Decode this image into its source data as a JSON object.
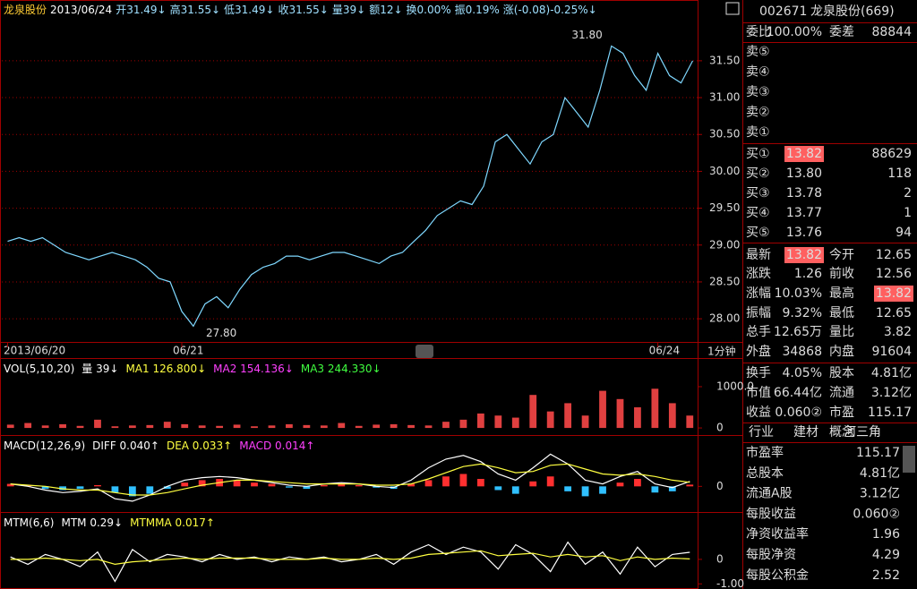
{
  "header": [
    "龙泉股份",
    "2013/06/24",
    "开31.49↓",
    "高31.55↓",
    "低31.49↓",
    "收31.55↓",
    "量39↓",
    "额12↓",
    "换0.00%",
    "振0.19%",
    "涨(-0.08)-0.25%↓"
  ],
  "chart_data": [
    {
      "type": "line",
      "color": "#7fd8ff",
      "grid": true,
      "categories": [
        "2013/06/20",
        null,
        null,
        null,
        null,
        null,
        null,
        null,
        null,
        null,
        null,
        null,
        null,
        null,
        null,
        "06/21",
        null,
        null,
        null,
        null,
        null,
        null,
        null,
        null,
        null,
        null,
        null,
        null,
        null,
        null,
        null,
        null,
        null,
        null,
        null,
        null,
        null,
        null,
        null,
        null,
        null,
        null,
        null,
        null,
        null,
        null,
        null,
        null,
        null,
        null,
        null,
        null,
        null,
        null,
        null,
        null,
        "06/24",
        null,
        null,
        null
      ],
      "values": [
        29.05,
        29.1,
        29.05,
        29.1,
        29.0,
        28.9,
        28.85,
        28.8,
        28.85,
        28.9,
        28.85,
        28.8,
        28.7,
        28.55,
        28.5,
        28.1,
        27.9,
        28.2,
        28.3,
        28.15,
        28.4,
        28.6,
        28.7,
        28.75,
        28.85,
        28.85,
        28.8,
        28.85,
        28.9,
        28.9,
        28.85,
        28.8,
        28.75,
        28.85,
        28.9,
        29.05,
        29.2,
        29.4,
        29.5,
        29.6,
        29.55,
        29.8,
        30.4,
        30.5,
        30.3,
        30.1,
        30.4,
        30.5,
        31.0,
        30.8,
        30.6,
        31.1,
        31.7,
        31.6,
        31.3,
        31.1,
        31.6,
        31.3,
        31.2,
        31.5
      ],
      "ylim": [
        27.71,
        32.3
      ],
      "yticks": [
        {
          "value": 28,
          "label": "28.00"
        },
        {
          "value": 28.5,
          "label": "28.50"
        },
        {
          "value": 29,
          "label": "29.00"
        },
        {
          "value": 29.5,
          "label": "29.50"
        },
        {
          "value": 30,
          "label": "30.00"
        },
        {
          "value": 30.5,
          "label": "30.50"
        },
        {
          "value": 31,
          "label": "31.00"
        },
        {
          "value": 31.5,
          "label": "31.50"
        }
      ],
      "annotations": {
        "high": "31.80",
        "low": "27.80"
      },
      "period": "1分钟"
    },
    {
      "type": "bar",
      "title": "VOL(5,10,20)",
      "grid": true,
      "legend": [
        {
          "text": "量 39↓",
          "color": "#ffffff"
        },
        {
          "text": "MA1 126.800↓",
          "color": "#ffff40"
        },
        {
          "text": "MA2 154.136↓",
          "color": "#ff40ff"
        },
        {
          "text": "MA3 244.330↓",
          "color": "#40ff40"
        }
      ],
      "ylim": [
        -150,
        1650
      ],
      "yticks": [
        0,
        {
          "value": 1000,
          "label": "1000.0"
        }
      ],
      "series": [
        {
          "type": "bar",
          "color": "#e04040",
          "values": [
            80,
            120,
            60,
            90,
            50,
            200,
            40,
            60,
            70,
            150,
            90,
            60,
            50,
            80,
            40,
            60,
            90,
            70,
            60,
            120,
            50,
            80,
            90,
            70,
            60,
            150,
            200,
            350,
            300,
            250,
            800,
            400,
            600,
            300,
            900,
            700,
            500,
            950,
            600,
            300
          ]
        }
      ]
    },
    {
      "type": "bar",
      "title": "MACD(12,26,9)",
      "grid": false,
      "legend": [
        {
          "text": "DIFF 0.040↑",
          "color": "#ffffff"
        },
        {
          "text": "DEA 0.033↑",
          "color": "#ffff40"
        },
        {
          "text": "MACD 0.014↑",
          "color": "#ff40ff"
        }
      ],
      "ylim": [
        -0.2,
        0.4
      ],
      "yticks": [
        0
      ],
      "series": [
        {
          "type": "bar",
          "color": "#ff3030",
          "negative_color": "#30c0ff",
          "values": [
            0.02,
            0.01,
            -0.02,
            -0.03,
            -0.02,
            0.01,
            -0.05,
            -0.08,
            -0.06,
            -0.02,
            0.03,
            0.05,
            0.06,
            0.05,
            0.03,
            0.02,
            -0.01,
            -0.02,
            0.01,
            0.02,
            0.01,
            -0.01,
            -0.02,
            0.02,
            0.05,
            0.08,
            0.1,
            0.06,
            -0.03,
            -0.06,
            0.04,
            0.08,
            -0.04,
            -0.08,
            -0.06,
            0.03,
            0.06,
            -0.05,
            -0.04,
            0.014
          ]
        },
        {
          "type": "line",
          "color": "#ffffff",
          "values": [
            0.02,
            0.0,
            -0.03,
            -0.05,
            -0.04,
            -0.02,
            -0.1,
            -0.12,
            -0.07,
            0.0,
            0.05,
            0.07,
            0.08,
            0.07,
            0.05,
            0.03,
            0.01,
            0.0,
            0.02,
            0.03,
            0.02,
            0.0,
            -0.01,
            0.05,
            0.15,
            0.22,
            0.25,
            0.2,
            0.1,
            0.05,
            0.15,
            0.26,
            0.18,
            0.05,
            0.02,
            0.08,
            0.12,
            0.02,
            -0.01,
            0.04
          ]
        },
        {
          "type": "line",
          "color": "#ffff40",
          "values": [
            0.02,
            0.01,
            0.0,
            -0.02,
            -0.03,
            -0.03,
            -0.05,
            -0.07,
            -0.07,
            -0.05,
            -0.02,
            0.01,
            0.03,
            0.05,
            0.05,
            0.04,
            0.03,
            0.02,
            0.02,
            0.02,
            0.02,
            0.01,
            0.01,
            0.02,
            0.06,
            0.11,
            0.16,
            0.18,
            0.15,
            0.11,
            0.12,
            0.17,
            0.18,
            0.14,
            0.1,
            0.09,
            0.1,
            0.08,
            0.05,
            0.033
          ]
        }
      ]
    },
    {
      "type": "line",
      "title": "MTM(6,6)",
      "grid": false,
      "legend": [
        {
          "text": "MTM 0.29↓",
          "color": "#ffffff"
        },
        {
          "text": "MTMMA 0.017↑",
          "color": "#ffff40"
        }
      ],
      "ylim": [
        -1.21,
        1.86
      ],
      "yticks": [
        0,
        {
          "value": -1,
          "label": "-1.00"
        }
      ],
      "series": [
        {
          "type": "line",
          "color": "#ffffff",
          "values": [
            0.1,
            -0.2,
            0.2,
            0.0,
            -0.3,
            0.3,
            -0.9,
            0.4,
            -0.1,
            0.2,
            0.1,
            -0.1,
            0.2,
            0.0,
            0.1,
            -0.1,
            0.1,
            0.0,
            0.1,
            -0.1,
            0.0,
            0.2,
            -0.2,
            0.3,
            0.6,
            0.2,
            0.5,
            0.3,
            -0.4,
            0.6,
            0.2,
            -0.5,
            0.7,
            -0.2,
            0.3,
            -0.6,
            0.5,
            -0.3,
            0.2,
            0.29
          ]
        },
        {
          "type": "line",
          "color": "#ffff40",
          "values": [
            0.0,
            0.0,
            0.05,
            0.0,
            -0.05,
            0.0,
            -0.2,
            -0.1,
            -0.05,
            0.0,
            0.05,
            0.0,
            0.05,
            0.05,
            0.05,
            0.0,
            0.0,
            0.0,
            0.05,
            0.0,
            0.0,
            0.05,
            0.0,
            0.05,
            0.2,
            0.25,
            0.3,
            0.35,
            0.15,
            0.2,
            0.25,
            0.1,
            0.2,
            0.1,
            0.15,
            -0.05,
            0.1,
            0.0,
            0.05,
            0.017
          ]
        }
      ]
    }
  ],
  "panel": {
    "code": "002671",
    "name": "龙泉股份(669)",
    "ratio": [
      "委比",
      "100.00%",
      "委差",
      "88844"
    ],
    "asks": [
      "卖⑤",
      "卖④",
      "卖③",
      "卖②",
      "卖①"
    ],
    "bids": [
      [
        "买①",
        "13.82",
        "88629"
      ],
      [
        "买②",
        "13.80",
        "118"
      ],
      [
        "买③",
        "13.78",
        "2"
      ],
      [
        "买④",
        "13.77",
        "1"
      ],
      [
        "买⑤",
        "13.76",
        "94"
      ]
    ],
    "stats": [
      [
        "最新",
        "13.82",
        "今开",
        "12.65"
      ],
      [
        "涨跌",
        "1.26",
        "前收",
        "12.56"
      ],
      [
        "涨幅",
        "10.03%",
        "最高",
        "13.82"
      ],
      [
        "振幅",
        "9.32%",
        "最低",
        "12.65"
      ],
      [
        "总手",
        "12.65万",
        "量比",
        "3.82"
      ],
      [
        "外盘",
        "34868",
        "内盘",
        "91604"
      ],
      [
        "换手",
        "4.05%",
        "股本",
        "4.81亿"
      ],
      [
        "市值",
        "66.44亿",
        "流通",
        "3.12亿"
      ],
      [
        "收益",
        "0.060②",
        "市盈",
        "115.17"
      ]
    ],
    "tabs": [
      "行业",
      "建材",
      "概念",
      "河三角"
    ],
    "finance": [
      [
        "市盈率",
        "115.17"
      ],
      [
        "总股本",
        "4.81亿"
      ],
      [
        "流通A股",
        "3.12亿"
      ],
      [
        "每股收益",
        "0.060②"
      ],
      [
        "净资收益率",
        "1.96"
      ],
      [
        "每股净资",
        "4.29"
      ],
      [
        "每股公积金",
        "2.52"
      ]
    ]
  }
}
